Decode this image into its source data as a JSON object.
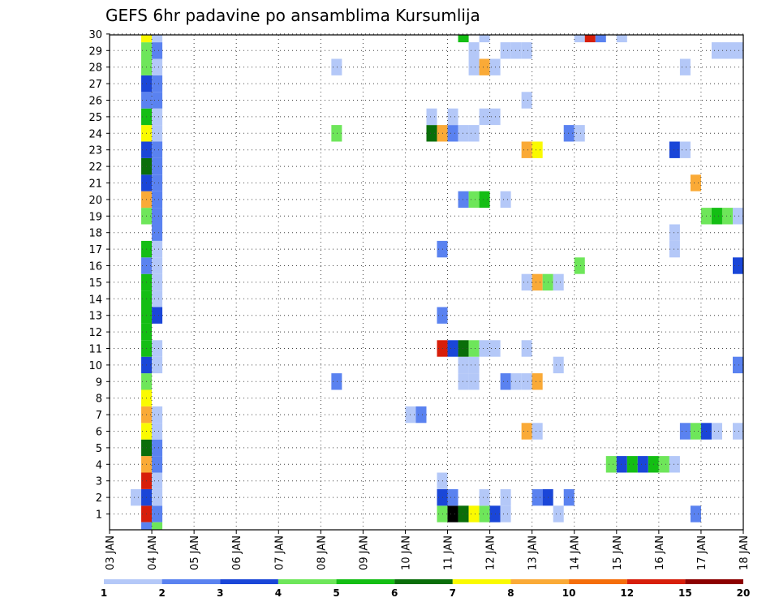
{
  "chart_data": {
    "type": "heatmap",
    "title": "GEFS 6hr padavine po ansamblima Kursumlija",
    "x_tick_labels": [
      "03 JAN",
      "04 JAN",
      "05 JAN",
      "06 JAN",
      "07 JAN",
      "08 JAN",
      "09 JAN",
      "10 JAN",
      "11 JAN",
      "12 JAN",
      "13 JAN",
      "14 JAN",
      "15 JAN",
      "16 JAN",
      "17 JAN",
      "18 JAN"
    ],
    "x_range_days": [
      0,
      15
    ],
    "time_step_hours": 6,
    "y_tick_labels": [
      "1",
      "2",
      "3",
      "4",
      "5",
      "6",
      "7",
      "8",
      "9",
      "10",
      "11",
      "12",
      "13",
      "14",
      "15",
      "16",
      "17",
      "18",
      "19",
      "20",
      "21",
      "22",
      "23",
      "24",
      "25",
      "26",
      "27",
      "28",
      "29",
      "30"
    ],
    "grid": "dotted",
    "legend": {
      "placement": "bottom",
      "colors": [
        "#b4c8f8",
        "#5a82f0",
        "#1a46d8",
        "#6ee65a",
        "#14be14",
        "#0a6e0a",
        "#fafa00",
        "#faaa37",
        "#f56e0a",
        "#d71e0a",
        "#8c0000"
      ],
      "labels": [
        "1",
        "2",
        "3",
        "4",
        "5",
        "6",
        "7",
        "8",
        "10",
        "12",
        "15",
        "20"
      ]
    },
    "cells": [
      [
        1,
        0.875,
        10
      ],
      [
        1,
        1.125,
        2
      ],
      [
        1,
        7.875,
        4
      ],
      [
        1,
        8.125,
        12
      ],
      [
        1,
        8.375,
        6
      ],
      [
        1,
        8.625,
        7
      ],
      [
        1,
        8.875,
        4
      ],
      [
        1,
        9.125,
        3
      ],
      [
        1,
        9.375,
        1
      ],
      [
        1,
        10.625,
        1
      ],
      [
        1,
        13.875,
        2
      ],
      [
        2,
        0.625,
        1
      ],
      [
        2,
        0.875,
        3
      ],
      [
        2,
        1.125,
        1
      ],
      [
        2,
        7.875,
        3
      ],
      [
        2,
        8.125,
        2
      ],
      [
        2,
        8.875,
        1
      ],
      [
        2,
        9.375,
        1
      ],
      [
        2,
        10.125,
        2
      ],
      [
        2,
        10.375,
        3
      ],
      [
        2,
        10.875,
        2
      ],
      [
        3,
        0.875,
        10
      ],
      [
        3,
        1.125,
        1
      ],
      [
        3,
        7.875,
        1
      ],
      [
        4,
        0.875,
        8
      ],
      [
        4,
        1.125,
        2
      ],
      [
        4,
        11.875,
        4
      ],
      [
        4,
        12.125,
        3
      ],
      [
        4,
        12.375,
        5
      ],
      [
        4,
        12.625,
        3
      ],
      [
        4,
        12.875,
        5
      ],
      [
        4,
        13.125,
        4
      ],
      [
        4,
        13.375,
        1
      ],
      [
        5,
        0.875,
        6
      ],
      [
        5,
        1.125,
        2
      ],
      [
        6,
        0.875,
        7
      ],
      [
        6,
        1.125,
        1
      ],
      [
        6,
        9.875,
        8
      ],
      [
        6,
        10.125,
        1
      ],
      [
        6,
        13.625,
        2
      ],
      [
        6,
        13.875,
        4
      ],
      [
        6,
        14.125,
        3
      ],
      [
        6,
        14.375,
        1
      ],
      [
        6,
        14.875,
        1
      ],
      [
        7,
        0.875,
        8
      ],
      [
        7,
        1.125,
        1
      ],
      [
        7,
        7.125,
        1
      ],
      [
        7,
        7.375,
        2
      ],
      [
        8,
        0.875,
        7
      ],
      [
        9,
        0.875,
        4
      ],
      [
        9,
        5.375,
        2
      ],
      [
        9,
        8.375,
        1
      ],
      [
        9,
        8.625,
        1
      ],
      [
        9,
        9.375,
        2
      ],
      [
        9,
        9.625,
        1
      ],
      [
        9,
        9.875,
        1
      ],
      [
        9,
        10.125,
        8
      ],
      [
        10,
        0.875,
        3
      ],
      [
        10,
        1.125,
        1
      ],
      [
        10,
        8.375,
        1
      ],
      [
        10,
        8.625,
        1
      ],
      [
        10,
        10.625,
        1
      ],
      [
        10,
        14.875,
        2
      ],
      [
        11,
        0.875,
        5
      ],
      [
        11,
        1.125,
        1
      ],
      [
        11,
        7.875,
        10
      ],
      [
        11,
        8.125,
        3
      ],
      [
        11,
        8.375,
        6
      ],
      [
        11,
        8.625,
        4
      ],
      [
        11,
        8.875,
        1
      ],
      [
        11,
        9.125,
        1
      ],
      [
        11,
        9.875,
        1
      ],
      [
        12,
        0.875,
        5
      ],
      [
        13,
        0.875,
        5
      ],
      [
        13,
        1.125,
        3
      ],
      [
        13,
        7.875,
        2
      ],
      [
        14,
        0.875,
        5
      ],
      [
        14,
        1.125,
        1
      ],
      [
        15,
        0.875,
        5
      ],
      [
        15,
        1.125,
        1
      ],
      [
        15,
        9.875,
        1
      ],
      [
        15,
        10.125,
        8
      ],
      [
        15,
        10.375,
        4
      ],
      [
        15,
        10.625,
        1
      ],
      [
        16,
        0.875,
        2
      ],
      [
        16,
        1.125,
        1
      ],
      [
        16,
        11.125,
        4
      ],
      [
        16,
        14.875,
        3
      ],
      [
        17,
        0.875,
        5
      ],
      [
        17,
        1.125,
        1
      ],
      [
        17,
        7.875,
        2
      ],
      [
        17,
        13.375,
        1
      ],
      [
        18,
        1.125,
        2
      ],
      [
        18,
        13.375,
        1
      ],
      [
        19,
        0.875,
        4
      ],
      [
        19,
        1.125,
        2
      ],
      [
        19,
        14.125,
        4
      ],
      [
        19,
        14.375,
        5
      ],
      [
        19,
        14.625,
        4
      ],
      [
        19,
        14.875,
        1
      ],
      [
        20,
        0.875,
        8
      ],
      [
        20,
        1.125,
        2
      ],
      [
        20,
        8.375,
        2
      ],
      [
        20,
        8.625,
        4
      ],
      [
        20,
        8.875,
        5
      ],
      [
        20,
        9.375,
        1
      ],
      [
        21,
        0.875,
        3
      ],
      [
        21,
        1.125,
        2
      ],
      [
        21,
        13.875,
        8
      ],
      [
        22,
        0.875,
        6
      ],
      [
        22,
        1.125,
        2
      ],
      [
        23,
        0.875,
        3
      ],
      [
        23,
        1.125,
        2
      ],
      [
        23,
        9.875,
        8
      ],
      [
        23,
        10.125,
        7
      ],
      [
        23,
        13.375,
        3
      ],
      [
        23,
        13.625,
        1
      ],
      [
        24,
        0.875,
        7
      ],
      [
        24,
        1.125,
        1
      ],
      [
        24,
        5.375,
        4
      ],
      [
        24,
        7.625,
        6
      ],
      [
        24,
        7.875,
        8
      ],
      [
        24,
        8.125,
        2
      ],
      [
        24,
        8.375,
        1
      ],
      [
        24,
        8.625,
        1
      ],
      [
        24,
        10.875,
        2
      ],
      [
        24,
        11.125,
        1
      ],
      [
        25,
        0.875,
        5
      ],
      [
        25,
        1.125,
        1
      ],
      [
        25,
        7.625,
        1
      ],
      [
        25,
        8.125,
        1
      ],
      [
        25,
        8.875,
        1
      ],
      [
        25,
        9.125,
        1
      ],
      [
        26,
        0.875,
        2
      ],
      [
        26,
        1.125,
        2
      ],
      [
        26,
        9.875,
        1
      ],
      [
        27,
        0.875,
        3
      ],
      [
        27,
        1.125,
        2
      ],
      [
        28,
        0.875,
        4
      ],
      [
        28,
        1.125,
        1
      ],
      [
        28,
        5.375,
        1
      ],
      [
        28,
        8.625,
        1
      ],
      [
        28,
        8.875,
        8
      ],
      [
        28,
        9.125,
        1
      ],
      [
        28,
        13.625,
        1
      ],
      [
        29,
        0.875,
        4
      ],
      [
        29,
        1.125,
        2
      ],
      [
        29,
        8.625,
        1
      ],
      [
        29,
        9.375,
        1
      ],
      [
        29,
        9.625,
        1
      ],
      [
        29,
        9.875,
        1
      ],
      [
        29,
        14.375,
        1
      ],
      [
        29,
        14.625,
        1
      ],
      [
        29,
        14.875,
        1
      ],
      [
        30,
        0.875,
        7
      ],
      [
        30,
        1.125,
        1
      ],
      [
        30,
        8.375,
        5
      ],
      [
        30,
        8.875,
        1
      ],
      [
        30,
        11.125,
        1
      ],
      [
        30,
        11.375,
        10
      ],
      [
        30,
        11.625,
        2
      ],
      [
        30,
        12.125,
        1
      ],
      [
        0,
        0.875,
        2
      ],
      [
        0,
        1.125,
        4
      ]
    ]
  }
}
